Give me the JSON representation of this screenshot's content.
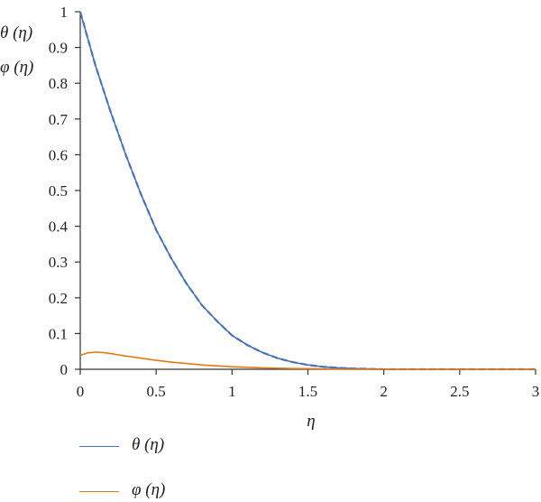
{
  "chart_data": {
    "type": "line",
    "xlabel": "η",
    "ylabel_lines": [
      "θ (η)",
      "φ (η)"
    ],
    "xlim": [
      0,
      3
    ],
    "ylim": [
      0,
      1
    ],
    "xticks": [
      "0",
      "0.5",
      "1",
      "1.5",
      "2",
      "2.5",
      "3"
    ],
    "yticks": [
      "0",
      "0.1",
      "0.2",
      "0.3",
      "0.4",
      "0.5",
      "0.6",
      "0.7",
      "0.8",
      "0.9",
      "1"
    ],
    "grid": false,
    "legend_position": "bottom-left",
    "series": [
      {
        "name": "θ (η)",
        "color": "#4472C4",
        "dashed_overlay_color": "#5F7486",
        "x": [
          0,
          0.1,
          0.2,
          0.3,
          0.4,
          0.5,
          0.6,
          0.7,
          0.8,
          0.9,
          1.0,
          1.1,
          1.2,
          1.3,
          1.4,
          1.5,
          1.6,
          1.7,
          1.8,
          1.9,
          2.0,
          2.5,
          3.0
        ],
        "y": [
          1.0,
          0.85,
          0.72,
          0.6,
          0.49,
          0.39,
          0.31,
          0.24,
          0.18,
          0.135,
          0.095,
          0.068,
          0.047,
          0.031,
          0.02,
          0.012,
          0.007,
          0.004,
          0.002,
          0.001,
          0.0,
          0.0,
          0.0
        ]
      },
      {
        "name": "φ (η)",
        "color": "#E07B14",
        "x": [
          0,
          0.05,
          0.1,
          0.15,
          0.2,
          0.3,
          0.4,
          0.5,
          0.6,
          0.8,
          1.0,
          1.2,
          1.4,
          1.6,
          1.8,
          2.0,
          2.5,
          3.0
        ],
        "y": [
          0.039,
          0.046,
          0.048,
          0.047,
          0.044,
          0.037,
          0.031,
          0.025,
          0.02,
          0.012,
          0.007,
          0.004,
          0.002,
          0.001,
          0.0,
          0.0,
          0.0,
          0.0
        ]
      }
    ]
  }
}
